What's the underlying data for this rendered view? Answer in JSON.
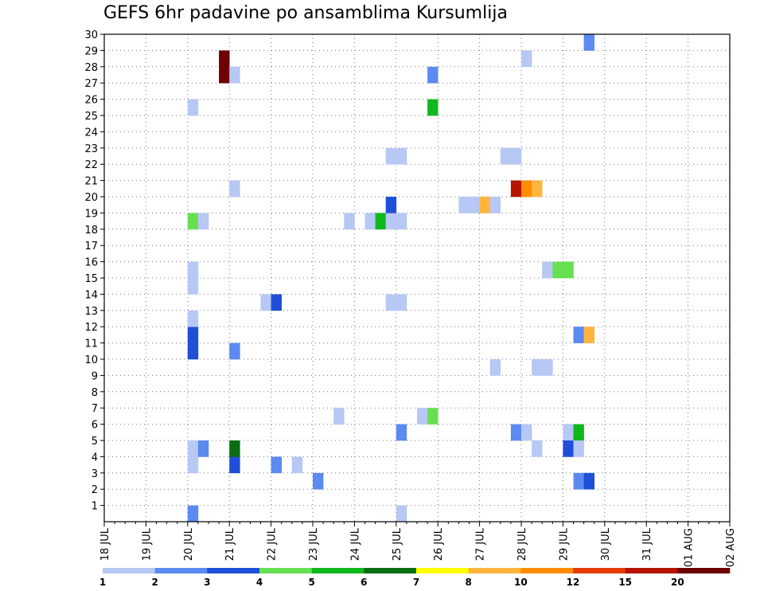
{
  "title": "GEFS 6hr padavine po ansamblima Kursumlija",
  "chart_data": {
    "type": "heatmap",
    "title": "GEFS 6hr padavine po ansamblima Kursumlija",
    "y_ticks": [
      "1",
      "2",
      "3",
      "4",
      "5",
      "6",
      "7",
      "8",
      "9",
      "10",
      "11",
      "12",
      "13",
      "14",
      "15",
      "16",
      "17",
      "18",
      "19",
      "20",
      "21",
      "22",
      "23",
      "24",
      "25",
      "26",
      "27",
      "28",
      "29",
      "30"
    ],
    "ylim": [
      0,
      30
    ],
    "x_ticks": [
      "18 JUL",
      "19 JUL",
      "20 JUL",
      "21 JUL",
      "22 JUL",
      "23 JUL",
      "24 JUL",
      "25 JUL",
      "26 JUL",
      "27 JUL",
      "28 JUL",
      "29 JUL",
      "30 JUL",
      "31 JUL",
      "01 AUG",
      "02 AUG"
    ],
    "xlim_steps": [
      0,
      60
    ],
    "grid": true,
    "colorbar": {
      "labels": [
        "1",
        "2",
        "3",
        "4",
        "5",
        "6",
        "7",
        "8",
        "10",
        "12",
        "15",
        "20"
      ],
      "colors": [
        "#b7c8f5",
        "#5b8af0",
        "#1f4fd8",
        "#66e050",
        "#10b81e",
        "#0a6e12",
        "#ffff00",
        "#ffb43c",
        "#ff8c00",
        "#e23c00",
        "#b41400",
        "#6e0000"
      ]
    },
    "cells": [
      {
        "x": 8,
        "y": 0,
        "c": 1
      },
      {
        "x": 8,
        "y": 3,
        "c": 0
      },
      {
        "x": 8,
        "y": 4,
        "c": 0
      },
      {
        "x": 9,
        "y": 4,
        "c": 1
      },
      {
        "x": 8,
        "y": 10,
        "c": 2
      },
      {
        "x": 8,
        "y": 11,
        "c": 2
      },
      {
        "x": 8,
        "y": 12,
        "c": 0
      },
      {
        "x": 8,
        "y": 14,
        "c": 0
      },
      {
        "x": 8,
        "y": 15,
        "c": 0
      },
      {
        "x": 8,
        "y": 18,
        "c": 3
      },
      {
        "x": 9,
        "y": 18,
        "c": 0
      },
      {
        "x": 8,
        "y": 25,
        "c": 0
      },
      {
        "x": 11,
        "y": 27,
        "c": 11
      },
      {
        "x": 11,
        "y": 28,
        "c": 11
      },
      {
        "x": 12,
        "y": 27,
        "c": 0
      },
      {
        "x": 12,
        "y": 20,
        "c": 0
      },
      {
        "x": 12,
        "y": 10,
        "c": 1
      },
      {
        "x": 12,
        "y": 3,
        "c": 2
      },
      {
        "x": 12,
        "y": 4,
        "c": 5
      },
      {
        "x": 16,
        "y": 3,
        "c": 1
      },
      {
        "x": 18,
        "y": 3,
        "c": 0
      },
      {
        "x": 20,
        "y": 2,
        "c": 1
      },
      {
        "x": 15,
        "y": 13,
        "c": 0
      },
      {
        "x": 16,
        "y": 13,
        "c": 2
      },
      {
        "x": 22,
        "y": 6,
        "c": 0
      },
      {
        "x": 23,
        "y": 18,
        "c": 0
      },
      {
        "x": 25,
        "y": 18,
        "c": 0
      },
      {
        "x": 26,
        "y": 18,
        "c": 4
      },
      {
        "x": 27,
        "y": 18,
        "c": 0
      },
      {
        "x": 28,
        "y": 18,
        "c": 0
      },
      {
        "x": 27,
        "y": 19,
        "c": 2
      },
      {
        "x": 27,
        "y": 22,
        "c": 0
      },
      {
        "x": 28,
        "y": 22,
        "c": 0
      },
      {
        "x": 27,
        "y": 13,
        "c": 0
      },
      {
        "x": 28,
        "y": 13,
        "c": 0
      },
      {
        "x": 28,
        "y": 5,
        "c": 1
      },
      {
        "x": 28,
        "y": 0,
        "c": 0
      },
      {
        "x": 30,
        "y": 6,
        "c": 0
      },
      {
        "x": 31,
        "y": 6,
        "c": 3
      },
      {
        "x": 31,
        "y": 25,
        "c": 4
      },
      {
        "x": 31,
        "y": 27,
        "c": 1
      },
      {
        "x": 34,
        "y": 19,
        "c": 0
      },
      {
        "x": 35,
        "y": 19,
        "c": 0
      },
      {
        "x": 36,
        "y": 19,
        "c": 7
      },
      {
        "x": 37,
        "y": 19,
        "c": 0
      },
      {
        "x": 37,
        "y": 9,
        "c": 0
      },
      {
        "x": 38,
        "y": 22,
        "c": 0
      },
      {
        "x": 39,
        "y": 22,
        "c": 0
      },
      {
        "x": 39,
        "y": 20,
        "c": 10
      },
      {
        "x": 40,
        "y": 20,
        "c": 8
      },
      {
        "x": 39,
        "y": 5,
        "c": 1
      },
      {
        "x": 40,
        "y": 5,
        "c": 0
      },
      {
        "x": 40,
        "y": 28,
        "c": 0
      },
      {
        "x": 41,
        "y": 20,
        "c": 7
      },
      {
        "x": 41,
        "y": 9,
        "c": 0
      },
      {
        "x": 42,
        "y": 9,
        "c": 0
      },
      {
        "x": 41,
        "y": 4,
        "c": 0
      },
      {
        "x": 42,
        "y": 15,
        "c": 0
      },
      {
        "x": 43,
        "y": 15,
        "c": 3
      },
      {
        "x": 44,
        "y": 15,
        "c": 3
      },
      {
        "x": 44,
        "y": 5,
        "c": 0
      },
      {
        "x": 45,
        "y": 5,
        "c": 4
      },
      {
        "x": 44,
        "y": 4,
        "c": 2
      },
      {
        "x": 45,
        "y": 4,
        "c": 0
      },
      {
        "x": 45,
        "y": 11,
        "c": 1
      },
      {
        "x": 46,
        "y": 11,
        "c": 7
      },
      {
        "x": 45,
        "y": 2,
        "c": 1
      },
      {
        "x": 46,
        "y": 2,
        "c": 2
      },
      {
        "x": 46,
        "y": 29,
        "c": 1
      }
    ]
  }
}
